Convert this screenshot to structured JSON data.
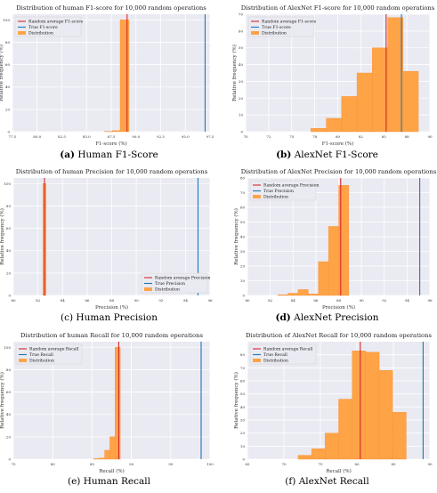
{
  "colors": {
    "bar": "#ffa347",
    "bar_stroke": "#f5923a",
    "random_average": "#d62728",
    "true_line": "#1f77b4",
    "plot_bg": "#eaeaf2",
    "grid": "#ffffff"
  },
  "captions": [
    {
      "label": "(a)",
      "text": "Human F1-Score"
    },
    {
      "label": "(b)",
      "text": "AlexNet F1-Score"
    },
    {
      "label": "(c)",
      "text": "Human Precision"
    },
    {
      "label": "(d)",
      "text": "AlexNet Precision"
    },
    {
      "label": "(e)",
      "text": "Human Recall"
    },
    {
      "label": "(f)",
      "text": "AlexNet Recall"
    }
  ],
  "chart_data": [
    {
      "type": "bar",
      "title": "Distribution of human F1-score for 10,000 random operations",
      "xlabel": "F1-score (%)",
      "ylabel": "Relative frequency (%)",
      "xlim": [
        77.5,
        97.5
      ],
      "ylim": [
        0,
        105
      ],
      "xticks": [
        "77.5",
        "80.0",
        "82.5",
        "85.0",
        "87.5",
        "90.0",
        "92.5",
        "95.0",
        "97.5"
      ],
      "yticks": [
        "0",
        "20",
        "40",
        "60",
        "80",
        "100"
      ],
      "bins": [
        {
          "x0": 86.8,
          "x1": 87.6,
          "value": 0.3
        },
        {
          "x0": 87.6,
          "x1": 88.4,
          "value": 1.0
        },
        {
          "x0": 88.4,
          "x1": 89.3,
          "value": 100
        }
      ],
      "random_average": 89.1,
      "true_value": 97.0,
      "legend": [
        "Random average F1-score",
        "True F1-score",
        "Distribution"
      ],
      "legend_position": "top-left",
      "grid": true
    },
    {
      "type": "bar",
      "title": "Distribution of AlexNet F1-score for 10,000 random operations",
      "xlabel": "F1-score (%)",
      "ylabel": "Relative frequency (%)",
      "xlim": [
        68,
        92
      ],
      "ylim": [
        0,
        70
      ],
      "xticks": [
        "70",
        "72",
        "75",
        "78",
        "80",
        "82",
        "85",
        "88",
        "90"
      ],
      "yticks": [
        "0",
        "10",
        "20",
        "30",
        "40",
        "50",
        "60",
        "70"
      ],
      "bins": [
        {
          "x0": 76.5,
          "x1": 78.5,
          "value": 2
        },
        {
          "x0": 78.5,
          "x1": 80.5,
          "value": 8
        },
        {
          "x0": 80.5,
          "x1": 82.5,
          "value": 21
        },
        {
          "x0": 82.5,
          "x1": 84.5,
          "value": 35
        },
        {
          "x0": 84.5,
          "x1": 86.5,
          "value": 50
        },
        {
          "x0": 86.5,
          "x1": 88.5,
          "value": 68
        },
        {
          "x0": 88.5,
          "x1": 90.5,
          "value": 36
        }
      ],
      "random_average": 86.3,
      "true_value": 88.3,
      "legend": [
        "Random average F1-score",
        "True F1-score",
        "Distribution"
      ],
      "legend_position": "top-left",
      "grid": true
    },
    {
      "type": "bar",
      "title": "Distribution of human Precision for 10,000 random operations",
      "xlabel": "Precision (%)",
      "ylabel": "Relative frequency (%)",
      "xlim": [
        79,
        97
      ],
      "ylim": [
        0,
        105
      ],
      "xticks": [
        "80",
        "82",
        "84",
        "86",
        "88",
        "90",
        "92",
        "94",
        "96"
      ],
      "yticks": [
        "0",
        "20",
        "40",
        "60",
        "80",
        "100"
      ],
      "bins": [
        {
          "x0": 81.7,
          "x1": 82.0,
          "value": 100
        }
      ],
      "random_average": 81.85,
      "true_value": 95.9,
      "legend": [
        "Random average Precision",
        "True Precision",
        "Distribution"
      ],
      "legend_position": "bottom-right",
      "grid": true
    },
    {
      "type": "bar",
      "title": "Distribution of AlexNet Precision for 10,000 random operations",
      "xlabel": "Precision (%)",
      "ylabel": "Relative frequency (%)",
      "xlim": [
        79,
        97
      ],
      "ylim": [
        0,
        80
      ],
      "xticks": [
        "80",
        "82",
        "84",
        "86",
        "88",
        "90",
        "92",
        "94",
        "96"
      ],
      "yticks": [
        "0",
        "10",
        "20",
        "30",
        "40",
        "50",
        "60",
        "70",
        "80"
      ],
      "bins": [
        {
          "x0": 82.0,
          "x1": 83.0,
          "value": 0.5
        },
        {
          "x0": 83.0,
          "x1": 84.0,
          "value": 1.5
        },
        {
          "x0": 84.0,
          "x1": 85.0,
          "value": 4
        },
        {
          "x0": 85.0,
          "x1": 86.0,
          "value": 1
        },
        {
          "x0": 86.0,
          "x1": 87.0,
          "value": 23
        },
        {
          "x0": 87.0,
          "x1": 88.0,
          "value": 47
        },
        {
          "x0": 88.0,
          "x1": 89.0,
          "value": 75
        }
      ],
      "random_average": 88.2,
      "true_value": 96.0,
      "legend": [
        "Random average Precision",
        "True Precision",
        "Distribution"
      ],
      "legend_position": "top-left",
      "grid": true
    },
    {
      "type": "bar",
      "title": "Distribution of human Recall for 10,000 random operations",
      "xlabel": "Recall (%)",
      "ylabel": "Relative frequency (%)",
      "xlim": [
        74,
        100.5
      ],
      "ylim": [
        0,
        105
      ],
      "xticks": [
        "75",
        "80",
        "85",
        "90",
        "95",
        "100"
      ],
      "yticks": [
        "0",
        "20",
        "40",
        "60",
        "80",
        "100"
      ],
      "bins": [
        {
          "x0": 84.8,
          "x1": 85.5,
          "value": 0.5
        },
        {
          "x0": 85.5,
          "x1": 86.3,
          "value": 1
        },
        {
          "x0": 86.3,
          "x1": 87.0,
          "value": 8
        },
        {
          "x0": 87.0,
          "x1": 87.7,
          "value": 20
        },
        {
          "x0": 87.7,
          "x1": 88.4,
          "value": 100
        }
      ],
      "random_average": 88.2,
      "true_value": 99.3,
      "legend": [
        "Random average Recall",
        "True Recall",
        "Distribution"
      ],
      "legend_position": "top-left",
      "grid": true
    },
    {
      "type": "bar",
      "title": "Distribution of AlexNet Recall for 10,000 random operations",
      "xlabel": "Recall (%)",
      "ylabel": "Relative frequency (%)",
      "xlim": [
        63.5,
        90.5
      ],
      "ylim": [
        0,
        90
      ],
      "xticks": [
        "65",
        "70",
        "75",
        "80",
        "85",
        "90"
      ],
      "yticks": [
        "0",
        "10",
        "20",
        "30",
        "40",
        "50",
        "60",
        "70",
        "80"
      ],
      "bins": [
        {
          "x0": 71.0,
          "x1": 73.0,
          "value": 3
        },
        {
          "x0": 73.0,
          "x1": 75.0,
          "value": 8
        },
        {
          "x0": 75.0,
          "x1": 77.0,
          "value": 20
        },
        {
          "x0": 77.0,
          "x1": 79.0,
          "value": 46
        },
        {
          "x0": 79.0,
          "x1": 81.0,
          "value": 83
        },
        {
          "x0": 81.0,
          "x1": 83.0,
          "value": 82
        },
        {
          "x0": 83.0,
          "x1": 85.0,
          "value": 68
        },
        {
          "x0": 85.0,
          "x1": 87.0,
          "value": 36
        }
      ],
      "random_average": 80.2,
      "true_value": 89.5,
      "legend": [
        "Random average Recall",
        "True Recall",
        "Distribution"
      ],
      "legend_position": "top-left",
      "grid": true
    }
  ]
}
